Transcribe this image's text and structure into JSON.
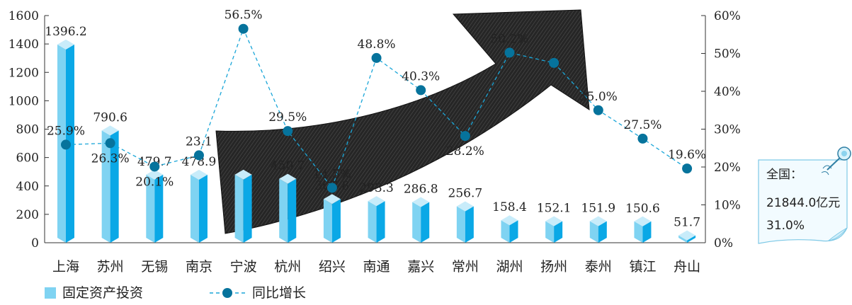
{
  "chart_data": {
    "type": "bar",
    "categories": [
      "上海",
      "苏州",
      "无锡",
      "南京",
      "宁波",
      "杭州",
      "绍兴",
      "南通",
      "嘉兴",
      "常州",
      "湖州",
      "扬州",
      "泰州",
      "镇江",
      "舟山"
    ],
    "series": [
      {
        "name": "固定资产投资",
        "type": "bar",
        "axis": "left",
        "values": [
          1396.2,
          790.6,
          479.7,
          478.9,
          480.0,
          450.7,
          307.8,
          293.3,
          286.8,
          256.7,
          158.4,
          152.1,
          151.9,
          150.6,
          51.7
        ],
        "labels": [
          "1396.2",
          "790.6",
          "479.7",
          "478.9",
          "",
          "450.7",
          "307.8",
          "293.3",
          "286.8",
          "256.7",
          "158.4",
          "152.1",
          "151.9",
          "150.6",
          "51.7"
        ]
      },
      {
        "name": "同比增长",
        "type": "line",
        "axis": "right",
        "values": [
          25.9,
          26.3,
          20.1,
          23.1,
          56.5,
          29.5,
          14.5,
          48.8,
          40.3,
          28.2,
          50.2,
          47.5,
          35.0,
          27.5,
          19.6
        ],
        "labels": [
          "25.9%",
          "26.3%",
          "20.1%",
          "23.1",
          "56.5%",
          "29.5%",
          "14.5%",
          "48.8%",
          "40.3%",
          "28.2%",
          "50.2%",
          "",
          "35.0%",
          "27.5%",
          "19.6%"
        ]
      }
    ],
    "y_left": {
      "min": 0,
      "max": 1600,
      "ticks": [
        "0",
        "200",
        "400",
        "600",
        "800",
        "1000",
        "1200",
        "1400",
        "1600"
      ]
    },
    "y_right": {
      "min": 0,
      "max": 60,
      "ticks": [
        "0%",
        "10%",
        "20%",
        "30%",
        "40%",
        "50%",
        "60%"
      ]
    },
    "legend": {
      "position": "bottom-left",
      "bar_label": "固定资产投资",
      "line_label": "同比增长"
    },
    "grid": false
  },
  "note": {
    "line1": "全国：",
    "line2": "21844.0亿元",
    "line3": "31.0%"
  },
  "colors": {
    "bar_front": "#7fd3f2",
    "bar_side": "#0aa8e6",
    "bar_top": "#c8ecfa",
    "line": "#1aa6d8",
    "marker": "#06739c",
    "arrow": "#1a1a1a",
    "note_border": "#7fc9e6",
    "note_fill": "#f2fbff"
  }
}
